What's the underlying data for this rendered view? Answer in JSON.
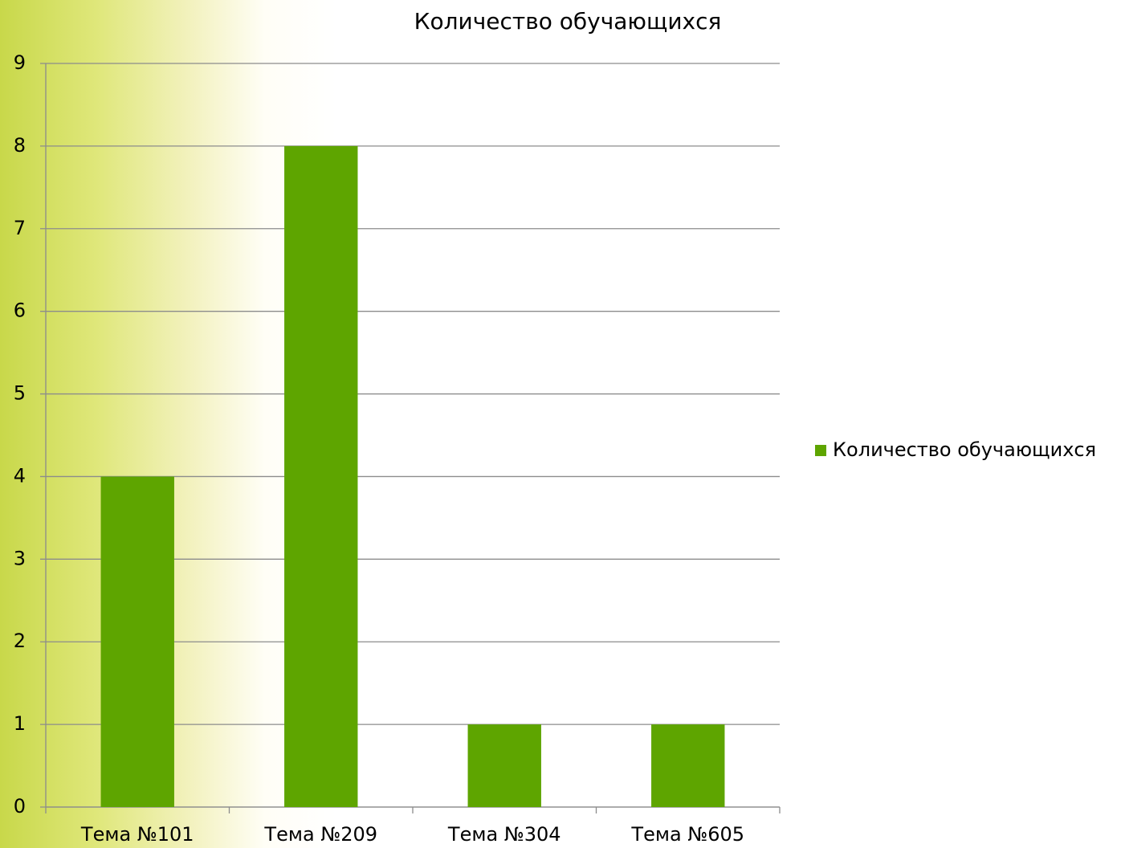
{
  "chart_data": {
    "type": "bar",
    "title": "Количество обучающихся",
    "categories": [
      "Тема №101",
      "Тема №209",
      "Тема №304",
      "Тема №605"
    ],
    "series": [
      {
        "name": "Количество обучающихся",
        "color": "#5ea500",
        "values": [
          4,
          8,
          1,
          1
        ]
      }
    ],
    "ylim": [
      0,
      9
    ],
    "yticks": [
      0,
      1,
      2,
      3,
      4,
      5,
      6,
      7,
      8,
      9
    ],
    "grid": true,
    "legend": "right"
  }
}
